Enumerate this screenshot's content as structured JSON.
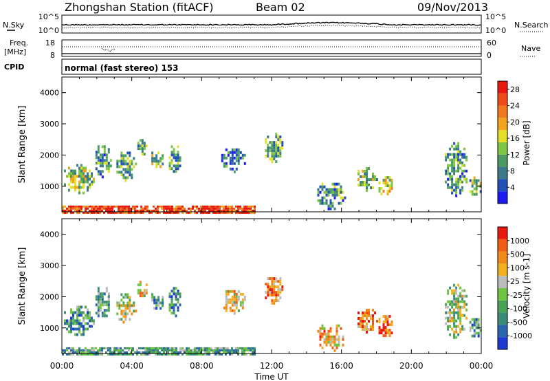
{
  "header": {
    "title": "Zhongshan Station (fitACF)",
    "beam": "Beam 02",
    "date": "09/Nov/2013"
  },
  "noise_panel": {
    "left_label": "N.Sky",
    "right_label": "N.Search",
    "ticks_left": [
      "10^5",
      "10^0"
    ],
    "ticks_right": [
      "10^5",
      "10^0"
    ]
  },
  "freq_panel": {
    "left_label_1": "Freq.",
    "left_label_2": "[MHz]",
    "right_label": "Nave",
    "ticks_left": [
      "18",
      "8"
    ],
    "ticks_right": [
      "60",
      "0"
    ]
  },
  "cpid": {
    "label": "CPID",
    "mode_text": "normal (fast stereo) 153"
  },
  "chart_data": [
    {
      "type": "heatmap",
      "name": "power",
      "ylabel": "Slant Range [km]",
      "ylim": [
        180,
        4500
      ],
      "yticks": [
        "1000",
        "2000",
        "3000",
        "4000"
      ],
      "xlim": [
        0,
        24
      ],
      "colorbar": {
        "label": "Power [dB]",
        "ticks": [
          "4",
          "8",
          "12",
          "16",
          "20",
          "24",
          "28"
        ],
        "colors": [
          "#1c1cf0",
          "#2252b8",
          "#3a7a8a",
          "#4a9a62",
          "#7cc644",
          "#e4e02a",
          "#f2a420",
          "#f27820",
          "#f04a18",
          "#e81a10"
        ],
        "range": [
          0,
          30
        ]
      },
      "scatter_regions": [
        {
          "t": [
            0.0,
            1.8
          ],
          "r": [
            800,
            1800
          ],
          "level": 0.45
        },
        {
          "t": [
            1.8,
            2.8
          ],
          "r": [
            1300,
            2400
          ],
          "level": 0.3
        },
        {
          "t": [
            3.0,
            4.2
          ],
          "r": [
            1200,
            2200
          ],
          "level": 0.35
        },
        {
          "t": [
            4.2,
            4.9
          ],
          "r": [
            2000,
            2600
          ],
          "level": 0.3
        },
        {
          "t": [
            5.0,
            5.8
          ],
          "r": [
            1600,
            2200
          ],
          "level": 0.45
        },
        {
          "t": [
            6.0,
            6.8
          ],
          "r": [
            1400,
            2400
          ],
          "level": 0.35
        },
        {
          "t": [
            9.0,
            10.5
          ],
          "r": [
            1500,
            2300
          ],
          "level": 0.2
        },
        {
          "t": [
            11.5,
            12.6
          ],
          "r": [
            1800,
            2800
          ],
          "level": 0.35
        },
        {
          "t": [
            14.5,
            16.2
          ],
          "r": [
            300,
            1200
          ],
          "level": 0.3
        },
        {
          "t": [
            16.8,
            18.0
          ],
          "r": [
            900,
            1700
          ],
          "level": 0.45
        },
        {
          "t": [
            18.0,
            18.9
          ],
          "r": [
            700,
            1500
          ],
          "level": 0.55
        },
        {
          "t": [
            21.8,
            23.2
          ],
          "r": [
            700,
            2500
          ],
          "level": 0.3
        },
        {
          "t": [
            23.2,
            24.0
          ],
          "r": [
            700,
            1400
          ],
          "level": 0.4
        }
      ],
      "near_range_band": {
        "t": [
          0.0,
          11.0
        ],
        "r": [
          180,
          380
        ],
        "level": 0.85
      }
    },
    {
      "type": "heatmap",
      "name": "velocity",
      "ylabel": "Slant Range [km]",
      "ylim": [
        180,
        4500
      ],
      "yticks": [
        "1000",
        "2000",
        "3000",
        "4000"
      ],
      "xlim": [
        0,
        24
      ],
      "colorbar": {
        "label": "Velocity [m s-1]",
        "ticks": [
          "1000",
          "500",
          "100",
          "25",
          "-25",
          "-100",
          "-500",
          "-1000"
        ],
        "colors": [
          "#1c3ad0",
          "#2a66b0",
          "#3c8a78",
          "#4aa256",
          "#6cc440",
          "#bcbcbc",
          "#f2b020",
          "#f28a18",
          "#f05c14",
          "#e81a10"
        ],
        "range": [
          -1000,
          1000
        ]
      },
      "scatter_regions": [
        {
          "t": [
            0.0,
            1.8
          ],
          "r": [
            800,
            1800
          ],
          "level": 0.3
        },
        {
          "t": [
            1.8,
            2.8
          ],
          "r": [
            1300,
            2400
          ],
          "level": 0.35
        },
        {
          "t": [
            3.0,
            4.2
          ],
          "r": [
            1200,
            2200
          ],
          "level": 0.55
        },
        {
          "t": [
            4.2,
            4.9
          ],
          "r": [
            2000,
            2600
          ],
          "level": 0.6
        },
        {
          "t": [
            5.0,
            5.8
          ],
          "r": [
            1600,
            2200
          ],
          "level": 0.3
        },
        {
          "t": [
            6.0,
            6.8
          ],
          "r": [
            1400,
            2400
          ],
          "level": 0.25
        },
        {
          "t": [
            9.0,
            10.5
          ],
          "r": [
            1500,
            2300
          ],
          "level": 0.6
        },
        {
          "t": [
            11.5,
            12.6
          ],
          "r": [
            1800,
            2800
          ],
          "level": 0.75
        },
        {
          "t": [
            14.5,
            16.2
          ],
          "r": [
            300,
            1200
          ],
          "level": 0.7
        },
        {
          "t": [
            16.8,
            18.0
          ],
          "r": [
            900,
            1700
          ],
          "level": 0.75
        },
        {
          "t": [
            18.0,
            18.9
          ],
          "r": [
            700,
            1500
          ],
          "level": 0.8
        },
        {
          "t": [
            21.8,
            23.2
          ],
          "r": [
            700,
            2500
          ],
          "level": 0.5
        },
        {
          "t": [
            23.2,
            24.0
          ],
          "r": [
            700,
            1400
          ],
          "level": 0.3
        }
      ],
      "near_range_band": {
        "t": [
          0.0,
          11.0
        ],
        "r": [
          180,
          380
        ],
        "level": 0.35
      }
    }
  ],
  "time_axis": {
    "label": "Time UT",
    "ticks": [
      "00:00",
      "04:00",
      "08:00",
      "12:00",
      "16:00",
      "20:00",
      "00:00"
    ],
    "tick_hours": [
      0,
      4,
      8,
      12,
      16,
      20,
      24
    ]
  }
}
